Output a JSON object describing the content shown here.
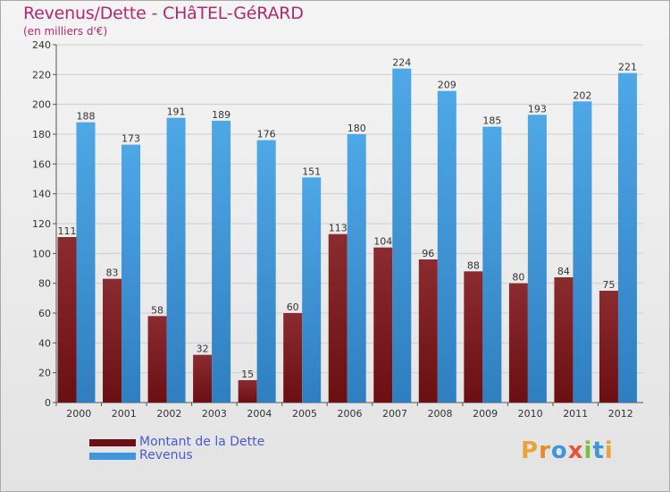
{
  "colors": {
    "dette": "#6b0f12",
    "revenus": "#3d97d9",
    "title": "#b4286e",
    "legend_text": "#4a59d6"
  },
  "chart_data": {
    "type": "bar",
    "title": "Revenus/Dette - CHâTEL-GéRARD",
    "subtitle": "(en milliers d'€)",
    "xlabel": "",
    "ylabel": "",
    "ylim": [
      0,
      240
    ],
    "yticks": [
      0,
      20,
      40,
      60,
      80,
      100,
      120,
      140,
      160,
      180,
      200,
      220,
      240
    ],
    "grid": true,
    "categories": [
      "2000",
      "2001",
      "2002",
      "2003",
      "2004",
      "2005",
      "2006",
      "2007",
      "2008",
      "2009",
      "2010",
      "2011",
      "2012"
    ],
    "series": [
      {
        "name": "Montant de la Dette",
        "values": [
          111,
          83,
          58,
          32,
          15,
          60,
          113,
          104,
          96,
          88,
          80,
          84,
          75
        ]
      },
      {
        "name": "Revenus",
        "values": [
          188,
          173,
          191,
          189,
          176,
          151,
          180,
          224,
          209,
          185,
          193,
          202,
          221
        ]
      }
    ]
  },
  "logo": {
    "letters": [
      "P",
      "r",
      "o",
      "x",
      "i",
      "t",
      "i"
    ]
  }
}
